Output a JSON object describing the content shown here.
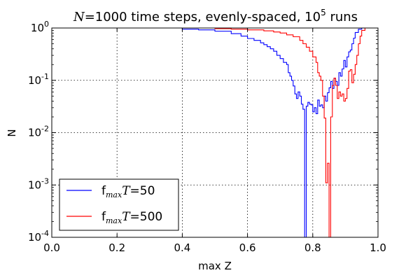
{
  "chart_data": {
    "type": "line",
    "step": true,
    "title": {
      "var": "N",
      "eq": "=1000",
      "mid": " time steps, evenly-spaced, ",
      "base": "10",
      "exp": "5",
      "end": "  runs"
    },
    "xlabel": "max Z",
    "ylabel": "N",
    "xlim": [
      0.0,
      1.0
    ],
    "ylim": [
      0.0001,
      1
    ],
    "yscale": "log",
    "grid": true,
    "legend_position": "lower-left",
    "x_ticks": [
      "0.0",
      "0.2",
      "0.4",
      "0.6",
      "0.8",
      "1.0"
    ],
    "y_ticks": [
      {
        "base": "10",
        "exp": "-4"
      },
      {
        "base": "10",
        "exp": "-3"
      },
      {
        "base": "10",
        "exp": "-2"
      },
      {
        "base": "10",
        "exp": "-1"
      },
      {
        "base": "10",
        "exp": "0"
      }
    ],
    "series": [
      {
        "name": "f_max T=50",
        "label": {
          "f": "f",
          "sub": "max",
          "var": "T",
          "eq": "=50"
        },
        "color": "#0000ff",
        "x": [
          0.35,
          0.4,
          0.45,
          0.5,
          0.55,
          0.58,
          0.6,
          0.62,
          0.64,
          0.65,
          0.66,
          0.67,
          0.68,
          0.69,
          0.7,
          0.71,
          0.72,
          0.725,
          0.73,
          0.735,
          0.74,
          0.745,
          0.75,
          0.755,
          0.76,
          0.765,
          0.77,
          0.775,
          0.78,
          0.785,
          0.79,
          0.795,
          0.8,
          0.805,
          0.81,
          0.815,
          0.82,
          0.825,
          0.83,
          0.835,
          0.84,
          0.845,
          0.85,
          0.855,
          0.86,
          0.865,
          0.87,
          0.875,
          0.88,
          0.885,
          0.89,
          0.895,
          0.9,
          0.905,
          0.91,
          0.915,
          0.92,
          0.925,
          0.93,
          0.94,
          0.95,
          0.96
        ],
        "y": [
          1.0,
          0.95,
          0.92,
          0.87,
          0.78,
          0.7,
          0.63,
          0.58,
          0.52,
          0.48,
          0.44,
          0.4,
          0.36,
          0.3,
          0.26,
          0.22,
          0.2,
          0.14,
          0.12,
          0.1,
          0.078,
          0.055,
          0.045,
          0.06,
          0.05,
          0.035,
          0.028,
          1e-05,
          0.032,
          0.038,
          0.035,
          0.034,
          0.025,
          0.03,
          0.023,
          0.042,
          0.032,
          0.034,
          0.03,
          0.05,
          0.04,
          0.058,
          0.072,
          0.095,
          0.07,
          0.11,
          0.095,
          0.08,
          0.14,
          0.12,
          0.165,
          0.24,
          0.18,
          0.28,
          0.35,
          0.38,
          0.5,
          0.64,
          0.82,
          0.95,
          1.0,
          1.0
        ]
      },
      {
        "name": "f_max T=500",
        "label": {
          "f": "f",
          "sub": "max",
          "var": "T",
          "eq": "=500"
        },
        "color": "#ff0000",
        "x": [
          0.45,
          0.5,
          0.55,
          0.6,
          0.65,
          0.68,
          0.7,
          0.72,
          0.74,
          0.76,
          0.77,
          0.78,
          0.79,
          0.8,
          0.81,
          0.815,
          0.82,
          0.825,
          0.83,
          0.835,
          0.84,
          0.845,
          0.85,
          0.855,
          0.86,
          0.865,
          0.87,
          0.875,
          0.88,
          0.885,
          0.89,
          0.895,
          0.9,
          0.905,
          0.91,
          0.915,
          0.92,
          0.925,
          0.93,
          0.935,
          0.94,
          0.945,
          0.95,
          0.96
        ],
        "y": [
          1.0,
          0.97,
          0.95,
          0.92,
          0.88,
          0.84,
          0.8,
          0.74,
          0.68,
          0.58,
          0.5,
          0.43,
          0.36,
          0.28,
          0.22,
          0.14,
          0.12,
          0.1,
          0.05,
          0.019,
          0.0011,
          0.0026,
          1e-05,
          0.02,
          0.08,
          0.11,
          0.08,
          0.045,
          0.06,
          0.05,
          0.055,
          0.04,
          0.045,
          0.07,
          0.15,
          0.16,
          0.09,
          0.13,
          0.2,
          0.3,
          0.5,
          0.7,
          0.9,
          1.0
        ]
      }
    ]
  }
}
